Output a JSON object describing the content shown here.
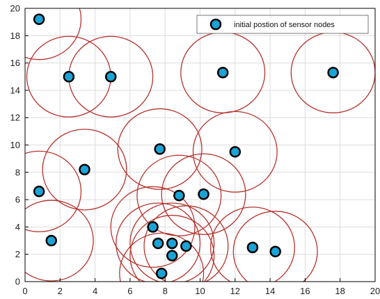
{
  "chart_data": {
    "type": "scatter",
    "title": "",
    "xlabel": "",
    "ylabel": "",
    "xlim": [
      0,
      20
    ],
    "ylim": [
      0,
      20
    ],
    "xticks": [
      0,
      2,
      4,
      6,
      8,
      10,
      12,
      14,
      16,
      18,
      20
    ],
    "yticks": [
      0,
      2,
      4,
      6,
      8,
      10,
      12,
      14,
      16,
      18,
      20
    ],
    "grid": true,
    "legend_position": "top-right",
    "legend": [
      "initial postion of sensor nodes"
    ],
    "colors": {
      "node_fill": "#1ba3d6",
      "node_edge": "#000000",
      "circle": "#b5332d",
      "grid": "#dcdcdc",
      "axes": "#000000"
    },
    "sensing_radius_x": 2.4,
    "sensing_radius_y": 2.95,
    "series": [
      {
        "name": "initial postion of sensor nodes",
        "points": [
          {
            "x": 0.8,
            "y": 19.2
          },
          {
            "x": 2.5,
            "y": 15.0
          },
          {
            "x": 4.9,
            "y": 15.0
          },
          {
            "x": 11.3,
            "y": 15.3
          },
          {
            "x": 17.6,
            "y": 15.3
          },
          {
            "x": 7.7,
            "y": 9.7
          },
          {
            "x": 12.0,
            "y": 9.5
          },
          {
            "x": 3.4,
            "y": 8.2
          },
          {
            "x": 0.8,
            "y": 6.6
          },
          {
            "x": 8.8,
            "y": 6.3
          },
          {
            "x": 10.2,
            "y": 6.4
          },
          {
            "x": 7.3,
            "y": 4.0
          },
          {
            "x": 1.5,
            "y": 3.0
          },
          {
            "x": 7.6,
            "y": 2.8
          },
          {
            "x": 8.4,
            "y": 2.8
          },
          {
            "x": 9.2,
            "y": 2.6
          },
          {
            "x": 13.0,
            "y": 2.5
          },
          {
            "x": 14.3,
            "y": 2.2
          },
          {
            "x": 8.4,
            "y": 1.9
          },
          {
            "x": 7.8,
            "y": 0.6
          }
        ]
      }
    ]
  }
}
